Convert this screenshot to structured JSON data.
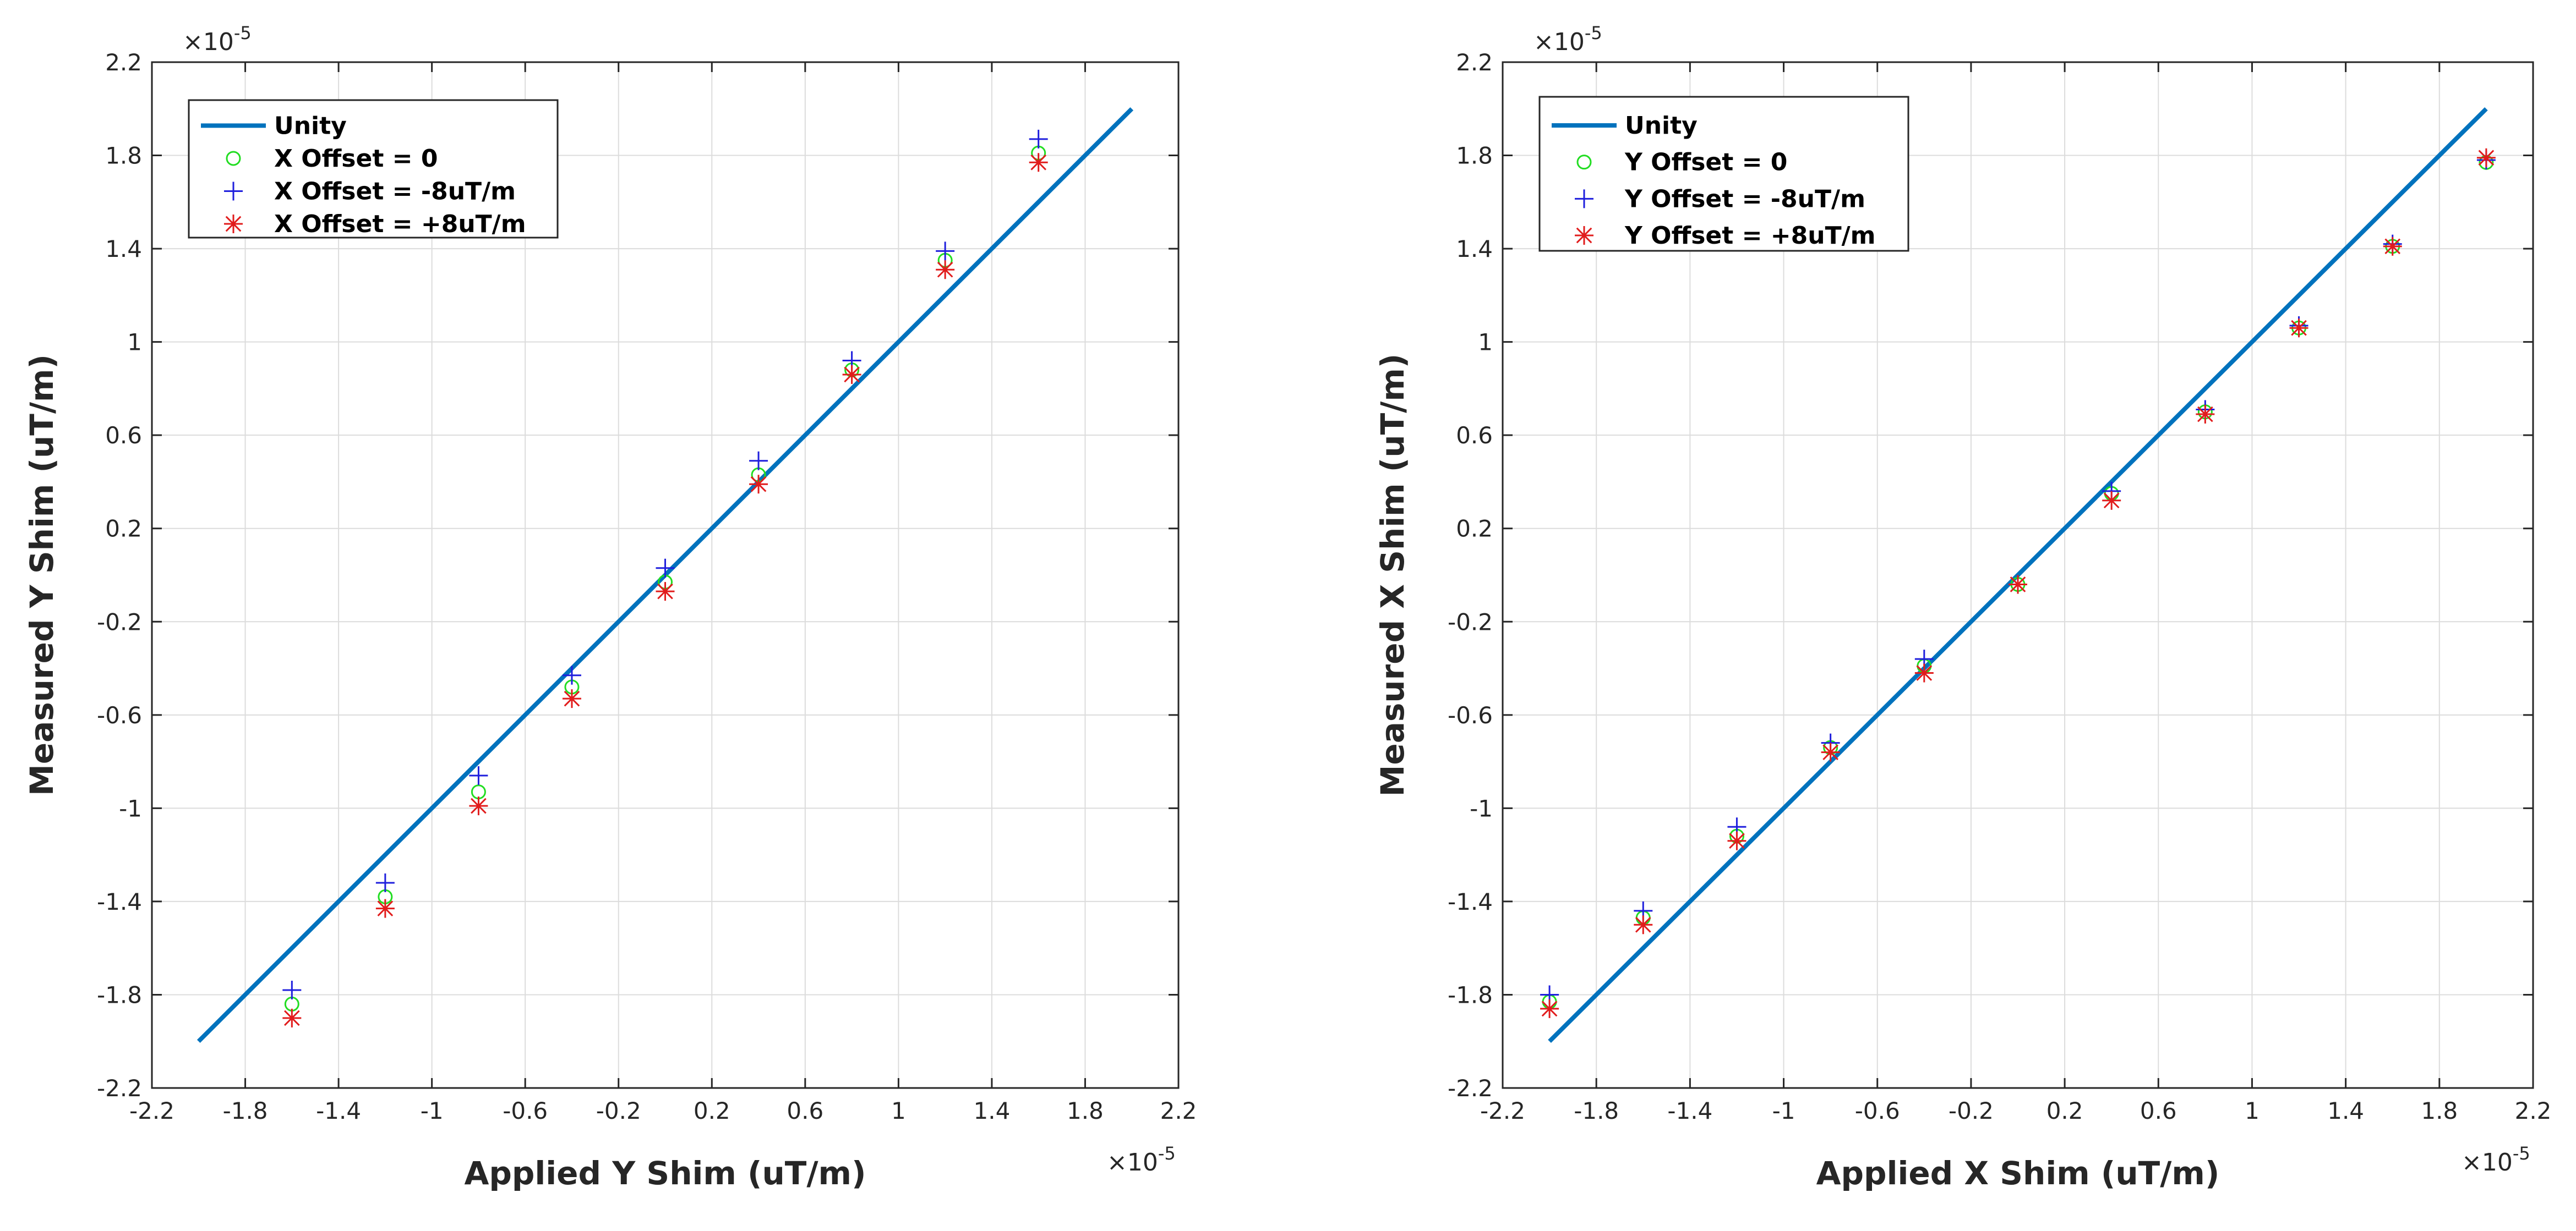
{
  "chart_data": [
    {
      "type": "scatter",
      "xlabel": "Applied Y Shim (uT/m)",
      "ylabel": "Measured Y Shim (uT/m)",
      "x_multiplier": "×10",
      "x_exponent": "-5",
      "y_multiplier": "×10",
      "y_exponent": "-5",
      "xlim": [
        -2.2,
        2.2
      ],
      "ylim": [
        -2.2,
        2.2
      ],
      "xticks": [
        "-2.2",
        "-1.8",
        "-1.4",
        "-1",
        "-0.6",
        "-0.2",
        "0.2",
        "0.6",
        "1",
        "1.4",
        "1.8",
        "2.2"
      ],
      "yticks": [
        "-2.2",
        "-1.8",
        "-1.4",
        "-1",
        "-0.6",
        "-0.2",
        "0.2",
        "0.6",
        "1",
        "1.4",
        "1.8",
        "2.2"
      ],
      "grid": true,
      "legend_position": "top-left",
      "unity": {
        "name": "Unity",
        "x": [
          -2.0,
          2.0
        ],
        "y": [
          -2.0,
          2.0
        ],
        "color": "#0072bd"
      },
      "series": [
        {
          "name": "X Offset = 0",
          "marker": "circle",
          "color": "#22dd22",
          "x": [
            -1.6,
            -1.2,
            -0.8,
            -0.4,
            0.0,
            0.4,
            0.8,
            1.2,
            1.6
          ],
          "y": [
            -1.84,
            -1.38,
            -0.93,
            -0.48,
            -0.03,
            0.43,
            0.88,
            1.35,
            1.81
          ]
        },
        {
          "name": "X Offset = -8uT/m",
          "marker": "plus",
          "color": "#1f1fdd",
          "x": [
            -1.6,
            -1.2,
            -0.8,
            -0.4,
            0.0,
            0.4,
            0.8,
            1.2,
            1.6
          ],
          "y": [
            -1.78,
            -1.32,
            -0.86,
            -0.43,
            0.03,
            0.49,
            0.92,
            1.39,
            1.87
          ]
        },
        {
          "name": "X Offset = +8uT/m",
          "marker": "asterisk",
          "color": "#e11c1c",
          "x": [
            -1.6,
            -1.2,
            -0.8,
            -0.4,
            0.0,
            0.4,
            0.8,
            1.2,
            1.6
          ],
          "y": [
            -1.9,
            -1.43,
            -0.99,
            -0.53,
            -0.07,
            0.39,
            0.86,
            1.31,
            1.77
          ]
        }
      ]
    },
    {
      "type": "scatter",
      "xlabel": "Applied X Shim (uT/m)",
      "ylabel": "Measured X Shim (uT/m)",
      "x_multiplier": "×10",
      "x_exponent": "-5",
      "y_multiplier": "×10",
      "y_exponent": "-5",
      "xlim": [
        -2.2,
        2.2
      ],
      "ylim": [
        -2.2,
        2.2
      ],
      "xticks": [
        "-2.2",
        "-1.8",
        "-1.4",
        "-1",
        "-0.6",
        "-0.2",
        "0.2",
        "0.6",
        "1",
        "1.4",
        "1.8",
        "2.2"
      ],
      "yticks": [
        "-2.2",
        "-1.8",
        "-1.4",
        "-1",
        "-0.6",
        "-0.2",
        "0.2",
        "0.6",
        "1",
        "1.4",
        "1.8",
        "2.2"
      ],
      "grid": true,
      "legend_position": "top-left",
      "unity": {
        "name": "Unity",
        "x": [
          -2.0,
          2.0
        ],
        "y": [
          -2.0,
          2.0
        ],
        "color": "#0072bd"
      },
      "series": [
        {
          "name": "Y Offset = 0",
          "marker": "circle",
          "color": "#22dd22",
          "x": [
            -2.0,
            -1.6,
            -1.2,
            -0.8,
            -0.4,
            0.0,
            0.4,
            0.8,
            1.2,
            1.6,
            2.0
          ],
          "y": [
            -1.83,
            -1.47,
            -1.12,
            -0.74,
            -0.39,
            -0.04,
            0.35,
            0.7,
            1.06,
            1.41,
            1.77
          ]
        },
        {
          "name": "Y Offset = -8uT/m",
          "marker": "plus",
          "color": "#1f1fdd",
          "x": [
            -2.0,
            -1.6,
            -1.2,
            -0.8,
            -0.4,
            0.0,
            0.4,
            0.8,
            1.2,
            1.6,
            2.0
          ],
          "y": [
            -1.8,
            -1.44,
            -1.08,
            -0.72,
            -0.36,
            -0.04,
            0.36,
            0.71,
            1.07,
            1.42,
            1.78
          ]
        },
        {
          "name": "Y Offset = +8uT/m",
          "marker": "asterisk",
          "color": "#e11c1c",
          "x": [
            -2.0,
            -1.6,
            -1.2,
            -0.8,
            -0.4,
            0.0,
            0.4,
            0.8,
            1.2,
            1.6,
            2.0
          ],
          "y": [
            -1.86,
            -1.5,
            -1.14,
            -0.76,
            -0.42,
            -0.04,
            0.32,
            0.69,
            1.06,
            1.41,
            1.79
          ]
        }
      ]
    }
  ]
}
